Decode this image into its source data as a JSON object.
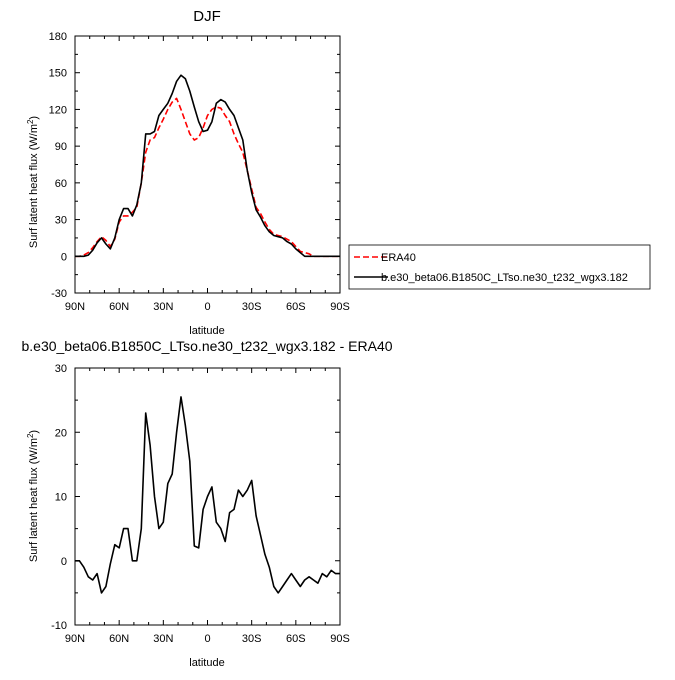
{
  "chart_data": [
    {
      "type": "line",
      "title": "DJF",
      "xlabel": "latitude",
      "ylabel": "Surf latent heat flux (W/m²)",
      "xlim": [
        90,
        -90
      ],
      "ylim": [
        -30,
        180
      ],
      "yticks": [
        "-30",
        "0",
        "30",
        "60",
        "90",
        "120",
        "150",
        "180"
      ],
      "xtick_values": [
        90,
        60,
        30,
        0,
        -30,
        -60,
        -90
      ],
      "xticks": [
        "90N",
        "60N",
        "30N",
        "0",
        "30S",
        "60S",
        "90S"
      ],
      "legend_position": "right",
      "series": [
        {
          "name": "ERA40",
          "color": "#ff0000",
          "dash": "dashed",
          "x": [
            90,
            87,
            84,
            81,
            78,
            75,
            72,
            69,
            66,
            63,
            60,
            57,
            54,
            51,
            48,
            45,
            42,
            39,
            36,
            33,
            30,
            27,
            24,
            21,
            18,
            15,
            12,
            9,
            6,
            3,
            0,
            -3,
            -6,
            -9,
            -12,
            -15,
            -18,
            -21,
            -24,
            -27,
            -30,
            -33,
            -36,
            -39,
            -42,
            -45,
            -48,
            -51,
            -54,
            -57,
            -60,
            -63,
            -66,
            -69,
            -72,
            -75,
            -78,
            -81,
            -84,
            -87,
            -90
          ],
          "y": [
            0,
            0,
            1,
            3,
            7,
            12,
            16,
            13,
            8,
            14,
            28,
            33,
            33,
            36,
            40,
            60,
            85,
            95,
            97,
            105,
            112,
            120,
            126,
            129,
            120,
            110,
            100,
            95,
            97,
            105,
            115,
            120,
            122,
            121,
            115,
            110,
            100,
            92,
            85,
            70,
            55,
            40,
            35,
            28,
            22,
            18,
            17,
            16,
            14,
            12,
            8,
            4,
            3,
            2,
            0,
            0,
            0,
            0,
            0,
            0,
            0
          ],
          "x_draw_note": ""
        },
        {
          "name": "b.e30_beta06.B1850C_LTso.ne30_t232_wgx3.182",
          "color": "#000000",
          "dash": "solid",
          "x": [
            90,
            87,
            84,
            81,
            78,
            75,
            72,
            69,
            66,
            63,
            60,
            57,
            54,
            51,
            48,
            45,
            42,
            39,
            36,
            33,
            30,
            27,
            24,
            21,
            18,
            15,
            12,
            9,
            6,
            3,
            0,
            -3,
            -6,
            -9,
            -12,
            -15,
            -18,
            -21,
            -24,
            -27,
            -30,
            -33,
            -36,
            -39,
            -42,
            -45,
            -48,
            -51,
            -54,
            -57,
            -60,
            -63,
            -66,
            -69,
            -72,
            -75,
            -78,
            -81,
            -84,
            -87,
            -90
          ],
          "y": [
            0,
            0,
            0,
            1,
            5,
            11,
            15,
            10,
            6,
            15,
            30,
            39,
            39,
            33,
            42,
            60,
            100,
            100,
            102,
            115,
            120,
            125,
            133,
            143,
            148,
            145,
            135,
            122,
            110,
            102,
            103,
            110,
            125,
            128,
            126,
            120,
            115,
            105,
            95,
            70,
            52,
            38,
            32,
            25,
            20,
            17,
            16,
            15,
            12,
            10,
            6,
            3,
            0,
            0,
            0,
            0,
            0,
            0,
            0,
            0,
            0
          ]
        }
      ]
    },
    {
      "type": "line",
      "title": "b.e30_beta06.B1850C_LTso.ne30_t232_wgx3.182 - ERA40",
      "xlabel": "latitude",
      "ylabel": "Surf latent heat flux (W/m²)",
      "xlim": [
        90,
        -90
      ],
      "ylim": [
        -10,
        30
      ],
      "yticks": [
        "-10",
        "0",
        "10",
        "20",
        "30"
      ],
      "xtick_values": [
        90,
        60,
        30,
        0,
        -30,
        -60,
        -90
      ],
      "xticks": [
        "90N",
        "60N",
        "30N",
        "0",
        "30S",
        "60S",
        "90S"
      ],
      "series": [
        {
          "color": "#000000",
          "dash": "solid",
          "x": [
            90,
            87,
            84,
            81,
            78,
            75,
            72,
            69,
            66,
            63,
            60,
            57,
            54,
            51,
            48,
            45,
            42,
            39,
            36,
            33,
            30,
            27,
            24,
            21,
            18,
            15,
            12,
            9,
            6,
            3,
            0,
            -3,
            -6,
            -9,
            -12,
            -15,
            -18,
            -21,
            -24,
            -27,
            -30,
            -33,
            -36,
            -39,
            -42,
            -45,
            -48,
            -51,
            -54,
            -57,
            -60,
            -63,
            -66,
            -69,
            -72,
            -75,
            -78,
            -81,
            -84,
            -87,
            -90
          ],
          "y": [
            0,
            0,
            -1,
            -2.5,
            -3,
            -2,
            -5,
            -4,
            -0.5,
            2.5,
            2,
            5,
            5,
            0,
            0,
            5,
            23,
            18,
            10,
            5,
            6,
            12,
            13.5,
            20,
            25.5,
            21,
            15.5,
            2.3,
            2,
            8,
            10,
            11.5,
            6,
            5,
            3,
            7.5,
            8,
            11,
            10,
            11,
            12.5,
            7,
            4,
            1,
            -1,
            -4,
            -5,
            -4,
            -3,
            -2,
            -3,
            -4,
            -3,
            -2.5,
            -3,
            -3.5,
            -2,
            -2.5,
            -1.5,
            -2,
            -2
          ]
        }
      ]
    }
  ]
}
